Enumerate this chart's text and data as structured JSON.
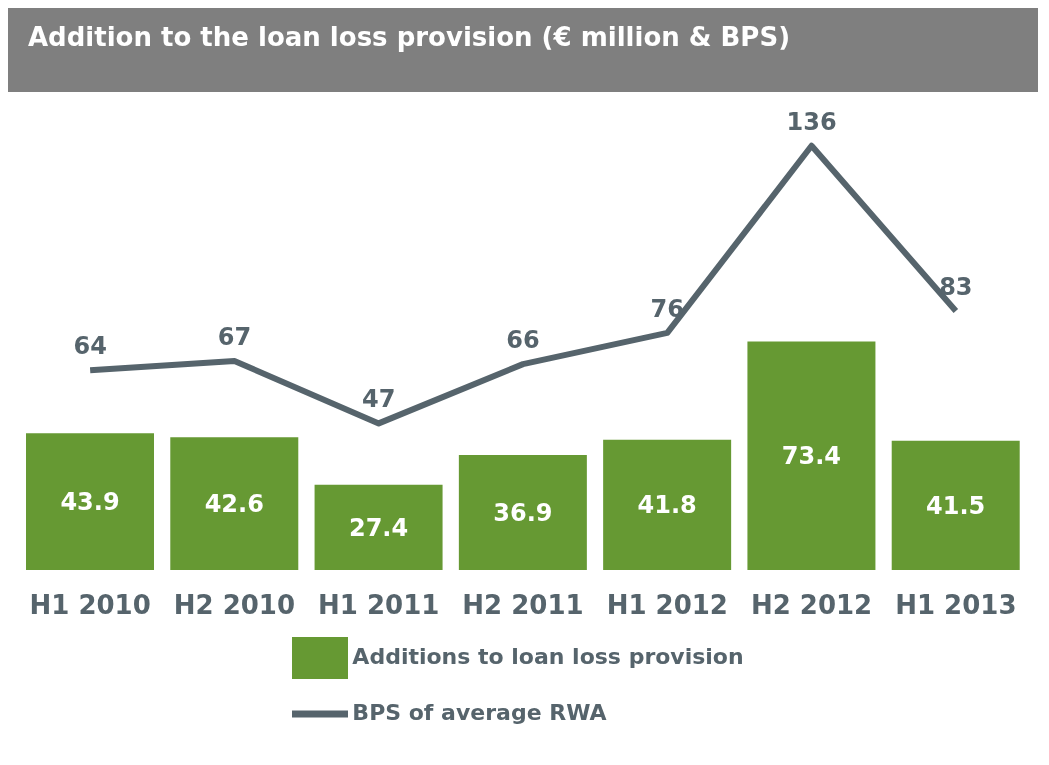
{
  "chart_data": {
    "type": "bar",
    "title": "Addition to the loan loss provision (€ million & BPS)",
    "categories": [
      "H1 2010",
      "H2 2010",
      "H1 2011",
      "H2 2011",
      "H1 2012",
      "H2 2012",
      "H1 2013"
    ],
    "series": [
      {
        "name": "Additions to loan loss provision",
        "color": "#669933",
        "values": [
          43.9,
          42.6,
          27.4,
          36.9,
          41.8,
          73.4,
          41.5
        ]
      },
      {
        "name": "BPS of average RWA",
        "type": "line",
        "axis": "y2",
        "color": "#56646c",
        "values": [
          64,
          67,
          47,
          66,
          76,
          136,
          83
        ]
      }
    ],
    "data_labels": true,
    "legend": "bottom",
    "marker": "none",
    "grid": false
  }
}
